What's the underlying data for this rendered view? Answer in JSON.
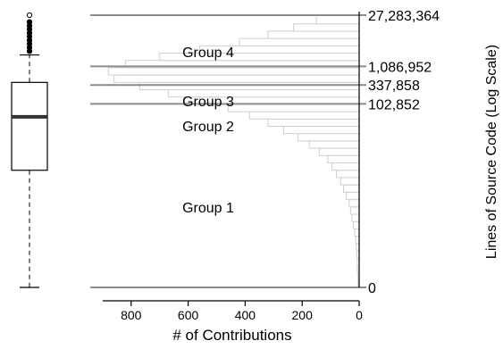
{
  "chart_data": {
    "type": "bar",
    "orientation": "horizontal",
    "scale_y": "log",
    "xlabel": "# of Contributions",
    "ylabel": "Lines of Source Code (Log Scale)",
    "x_ticks": [
      800,
      600,
      400,
      200,
      0
    ],
    "x_reversed": true,
    "xlim": [
      0,
      900
    ],
    "ylim_log": [
      0,
      7.436
    ],
    "group_thresholds": [
      {
        "value": 27283364,
        "label": "27,283,364"
      },
      {
        "value": 1086952,
        "label": "1,086,952"
      },
      {
        "value": 337858,
        "label": "337,858"
      },
      {
        "value": 102852,
        "label": "102,852"
      },
      {
        "value": 0,
        "label": "0"
      }
    ],
    "group_labels": [
      "Group 4",
      "Group 3",
      "Group 2",
      "Group 1"
    ],
    "histogram_bins_log10_lower_edges": [
      0.0,
      0.2,
      0.4,
      0.6,
      0.8,
      1.0,
      1.2,
      1.4,
      1.6,
      1.8,
      2.0,
      2.2,
      2.4,
      2.6,
      2.8,
      3.0,
      3.2,
      3.4,
      3.6,
      3.8,
      4.0,
      4.2,
      4.4,
      4.6,
      4.8,
      5.0,
      5.2,
      5.4,
      5.6,
      5.8,
      6.0,
      6.2,
      6.4,
      6.6,
      6.8,
      7.0,
      7.2
    ],
    "histogram_counts": [
      4,
      5,
      6,
      7,
      8,
      10,
      12,
      15,
      20,
      25,
      30,
      35,
      45,
      55,
      65,
      80,
      95,
      110,
      140,
      175,
      215,
      265,
      320,
      385,
      460,
      560,
      670,
      770,
      860,
      880,
      820,
      700,
      560,
      420,
      320,
      230,
      150
    ],
    "boxplot": {
      "min": 0,
      "q1": 3.2,
      "median": 4.66,
      "q3": 5.6,
      "whisker_high": 6.35,
      "outliers": [
        6.45,
        6.55,
        6.65,
        6.75,
        6.85,
        6.95,
        7.05,
        7.15,
        7.25,
        7.436
      ]
    },
    "colors": {
      "bar_fill": "#ffffff",
      "bar_stroke": "#cfcfcf",
      "group_line": "#8c8c8c",
      "axis": "#000000",
      "median": "#333333"
    }
  }
}
